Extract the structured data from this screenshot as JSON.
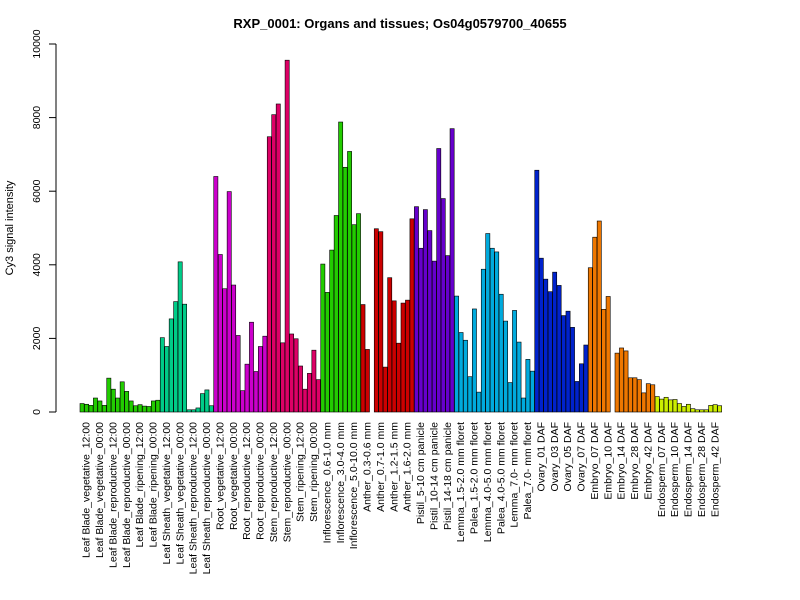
{
  "chart_data": {
    "type": "bar",
    "title": "RXP_0001: Organs and tissues; Os04g0579700_40655",
    "ylabel": "Cy3 signal intensity",
    "xlabel": "",
    "ylim": [
      0,
      10000
    ],
    "yticks": [
      0,
      2000,
      4000,
      6000,
      8000,
      10000
    ],
    "grid": false,
    "legend": "none",
    "tick_labels": [
      "Leaf Blade_vegetative_12:00",
      "Leaf Blade_vegetative_00:00",
      "Leaf Blade_reproductive_12:00",
      "Leaf Blade_reproductive_00:00",
      "Leaf Blade_ripening_12:00",
      "Leaf Blade_ripening_00:00",
      "Leaf Sheath_vegetative_12:00",
      "Leaf Sheath_vegetative_00:00",
      "Leaf Sheath_reproductive_12:00",
      "Leaf Sheath_reproductive_00:00",
      "Root_vegetative_12:00",
      "Root_vegetative_00:00",
      "Root_reproductive_12:00",
      "Root_reproductive_00:00",
      "Stem_reproductive_12:00",
      "Stem_reproductive_00:00",
      "Stem_ripening_12:00",
      "Stem_ripening_00:00",
      "Inflorescence_0.6-1.0 mm",
      "Inflorescence_3.0-4.0 mm",
      "Inflorescence_5.0-10.0 mm",
      "Anther_0.3-0.6 mm",
      "Anther_0.7-1.0 mm",
      "Anther_1.2-1.5 mm",
      "Anther_1.6-2.0 mm",
      "Pistil_5-10 cm panicle",
      "Pistil_10-14 cm panicle",
      "Pistil_14-18 cm panicle",
      "Lemma_1.5-2.0 mm floret",
      "Palea_1.5-2.0 mm floret",
      "Lemma_4.0-5.0 mm floret",
      "Palea_4.0-5.0 mm floret",
      "Lemma_7.0- mm floret",
      "Palea_7.0- mm floret",
      "Ovary_01 DAF",
      "Ovary_03 DAF",
      "Ovary_05 DAF",
      "Ovary_07 DAF",
      "Embryo_07 DAF",
      "Embryo_10 DAF",
      "Embryo_14 DAF",
      "Embryo_28 DAF",
      "Embryo_42 DAF",
      "Endosperm_07 DAF",
      "Endosperm_10 DAF",
      "Endosperm_14 DAF",
      "Endosperm_28 DAF",
      "Endosperm_42 DAF"
    ],
    "groups": [
      {
        "color": "#22cc00",
        "values": [
          [
            230,
            210,
            180
          ],
          [
            380,
            300,
            180
          ],
          [
            920,
            620,
            380
          ],
          [
            820,
            560,
            300
          ],
          [
            170,
            200,
            160
          ],
          [
            150,
            300,
            320
          ]
        ]
      },
      {
        "color": "#00cc88",
        "values": [
          [
            2020,
            1780,
            2530
          ],
          [
            3000,
            4080,
            2930
          ],
          [
            60,
            60,
            110
          ],
          [
            500,
            600,
            170
          ]
        ]
      },
      {
        "color": "#cc00cc",
        "values": [
          [
            6400,
            4280,
            3350
          ],
          [
            5990,
            3450,
            2080
          ],
          [
            580,
            1300,
            2440
          ],
          [
            1100,
            1780,
            2060
          ]
        ]
      },
      {
        "color": "#dd0066",
        "values": [
          [
            7480,
            8080,
            8370
          ],
          [
            1880,
            9560,
            2120
          ],
          [
            1990,
            1250,
            620
          ],
          [
            1050,
            1680,
            880
          ]
        ]
      },
      {
        "color": "#22cc00",
        "values": [
          [
            4020,
            3250,
            4400
          ],
          [
            5340,
            7880,
            6650
          ],
          [
            7080,
            5090,
            5390
          ]
        ]
      },
      {
        "color": "#cc0000",
        "values": [
          [
            2920,
            1700,
            0
          ],
          [
            4980,
            4900,
            1220
          ],
          [
            3650,
            3020,
            1870
          ],
          [
            2960,
            3040,
            5250
          ]
        ]
      },
      {
        "color": "#6600cc",
        "values": [
          [
            5580,
            4450,
            5500
          ],
          [
            4930,
            4100,
            7160
          ],
          [
            5800,
            4250,
            7700
          ]
        ]
      },
      {
        "color": "#00aadd",
        "values": [
          [
            3150,
            2160,
            1950
          ],
          [
            960,
            2800,
            540
          ],
          [
            3880,
            4850,
            4450
          ],
          [
            4350,
            3200,
            2470
          ],
          [
            800,
            2760,
            1900
          ],
          [
            380,
            1430,
            1110
          ]
        ]
      },
      {
        "color": "#0022cc",
        "values": [
          [
            6570,
            4180,
            3610
          ],
          [
            3270,
            3800,
            3440
          ],
          [
            2620,
            2740,
            2300
          ],
          [
            830,
            1310,
            1820
          ]
        ]
      },
      {
        "color": "#ee7700",
        "values": [
          [
            3920,
            4750,
            5190
          ],
          [
            2790,
            3140,
            0
          ],
          [
            1600,
            1740,
            1660
          ],
          [
            930,
            930,
            880
          ],
          [
            520,
            770,
            740
          ]
        ]
      },
      {
        "color": "#ccee00",
        "values": [
          [
            420,
            350,
            400
          ],
          [
            330,
            340,
            230
          ],
          [
            150,
            210,
            90
          ],
          [
            60,
            60,
            60
          ],
          [
            180,
            200,
            170
          ]
        ]
      }
    ]
  }
}
